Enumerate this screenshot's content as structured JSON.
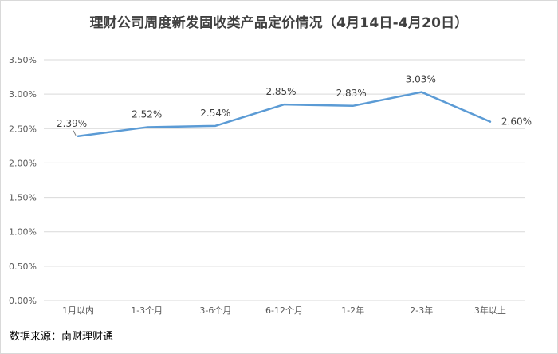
{
  "chart_data": {
    "type": "line",
    "title": "理财公司周度新发固收类产品定价情况（4月14日-4月20日）",
    "categories": [
      "1月以内",
      "1-3个月",
      "3-6个月",
      "6-12个月",
      "1-2年",
      "2-3年",
      "3年以上"
    ],
    "values": [
      2.39,
      2.52,
      2.54,
      2.85,
      2.83,
      3.03,
      2.6
    ],
    "data_labels": [
      "2.39%",
      "2.52%",
      "2.54%",
      "2.85%",
      "2.83%",
      "3.03%",
      "2.60%"
    ],
    "y_ticks": [
      "0.00%",
      "0.50%",
      "1.00%",
      "1.50%",
      "2.00%",
      "2.50%",
      "3.00%",
      "3.50%"
    ],
    "ylim": [
      0,
      3.5
    ],
    "y_tick_step": 0.5,
    "xlabel": "",
    "ylabel": "",
    "grid": true,
    "legend": "none",
    "line_color": "#5b9bd5",
    "grid_color": "#d9d9d9"
  },
  "source_text": "数据来源：南财理财通"
}
